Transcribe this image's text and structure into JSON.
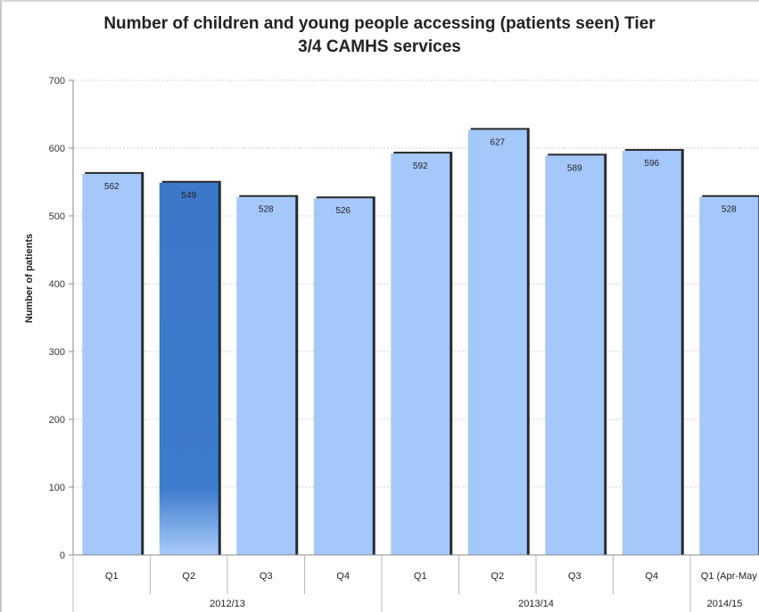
{
  "chart_data": {
    "type": "bar",
    "title_line1": "Number of children and young people accessing (patients seen) Tier",
    "title_line2": "3/4 CAMHS services",
    "ylabel": "Number of patients",
    "xlabel": "",
    "ylim": [
      0,
      700
    ],
    "yticks": [
      0,
      100,
      200,
      300,
      400,
      500,
      600,
      700
    ],
    "grid": true,
    "legend": "none",
    "categories": [
      "Q1",
      "Q2",
      "Q3",
      "Q4",
      "Q1",
      "Q2",
      "Q3",
      "Q4",
      "Q1 (Apr-May"
    ],
    "values": [
      562,
      549,
      528,
      526,
      592,
      627,
      589,
      596,
      528
    ],
    "value_labels": [
      "562",
      "549",
      "528",
      "526",
      "592",
      "627",
      "589",
      "596",
      "528"
    ],
    "highlight_index": 1,
    "groups": [
      {
        "label": "2012/13",
        "start": 0,
        "end": 3
      },
      {
        "label": "2013/14",
        "start": 4,
        "end": 7
      },
      {
        "label": "2014/15",
        "start": 8,
        "end": 8
      }
    ],
    "colors": {
      "bar": "#a5c8fb",
      "bar_highlight": "#3b78c8",
      "bar_shadow": "#2a2a2a",
      "grid": "#d0d0d0",
      "axis": "#888888"
    }
  }
}
